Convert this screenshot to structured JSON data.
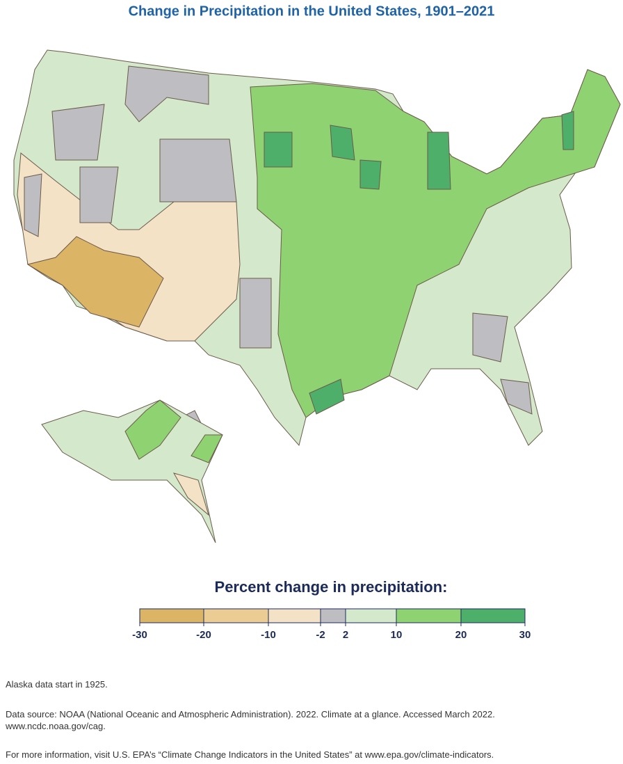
{
  "title": "Change in Precipitation in the United States, 1901–2021",
  "legend": {
    "title": "Percent change in precipitation:",
    "ticks": [
      -30,
      -20,
      -10,
      -2,
      2,
      10,
      20,
      30
    ],
    "colors": [
      "#dcb465",
      "#ebcc93",
      "#f3e2c6",
      "#bdbdc2",
      "#d4e8cc",
      "#8fd272",
      "#4daf6a"
    ]
  },
  "notes": {
    "alaska": "Alaska data start in 1925.",
    "source": [
      "Data source: NOAA (National Oceanic and Atmospheric Administration). 2022. Climate at a glance. Accessed March 2022.",
      "www.ncdc.noaa.gov/cag."
    ],
    "more_info": "For more information, visit U.S. EPA’s “Climate Change Indicators in the United States” at www.epa.gov/climate-indicators."
  }
}
